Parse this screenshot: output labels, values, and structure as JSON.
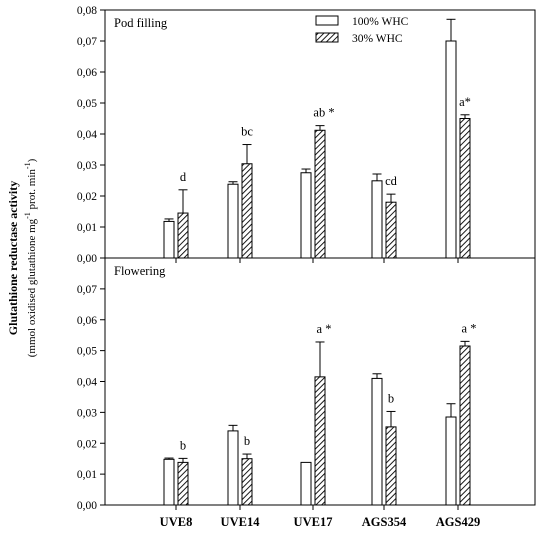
{
  "chart_data": {
    "type": "bar",
    "categories": [
      "UVE8",
      "UVE14",
      "UVE17",
      "AGS354",
      "AGS429"
    ],
    "ylabel": "Glutathione reductase activity",
    "ylabel_line2": "(mmol oxidised glutathione mg",
    "ylabel_line2_sup": "-1",
    "ylabel_line2_b": " prot. min",
    "ylabel_line2_sup2": "-1",
    "ylabel_line2_end": ")",
    "legend": {
      "position": "top-right-inside-top-panel",
      "entries": [
        {
          "label": "100% WHC",
          "style": "white"
        },
        {
          "label": "30% WHC",
          "style": "hatched"
        }
      ]
    },
    "ylim": [
      0,
      0.08
    ],
    "yticks": [
      "0,00",
      "0,01",
      "0,02",
      "0,03",
      "0,04",
      "0,05",
      "0,06",
      "0,07",
      "0,08"
    ],
    "panels": [
      {
        "title": "Pod filling",
        "series": [
          {
            "name": "100% WHC",
            "values": [
              0.0118,
              0.0238,
              0.0275,
              0.0249,
              0.07
            ],
            "errors": [
              0.0008,
              0.0008,
              0.0012,
              0.0022,
              0.007
            ]
          },
          {
            "name": "30% WHC",
            "values": [
              0.0145,
              0.0304,
              0.0412,
              0.018,
              0.045
            ],
            "errors": [
              0.0075,
              0.0062,
              0.0015,
              0.0026,
              0.0012
            ]
          }
        ],
        "labels": [
          "d",
          "bc",
          "ab *",
          "cd",
          "a*"
        ]
      },
      {
        "title": "Flowering",
        "series": [
          {
            "name": "100% WHC",
            "values": [
              0.0148,
              0.024,
              0.0138,
              0.041,
              0.0285
            ],
            "errors": [
              0.0004,
              0.0018,
              0.0,
              0.0015,
              0.0043
            ]
          },
          {
            "name": "30% WHC",
            "values": [
              0.0138,
              0.015,
              0.0415,
              0.0253,
              0.0515
            ],
            "errors": [
              0.0013,
              0.0015,
              0.0113,
              0.005,
              0.0015
            ]
          }
        ],
        "labels": [
          "b",
          "b",
          "a *",
          "b",
          "a *"
        ]
      }
    ]
  }
}
